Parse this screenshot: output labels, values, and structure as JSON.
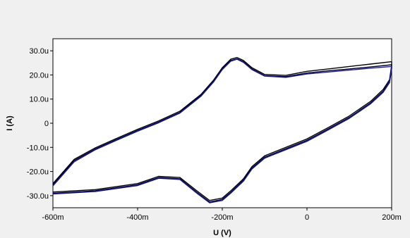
{
  "chart_data": {
    "type": "line",
    "title": "",
    "xlabel": "U (V)",
    "ylabel": "I (A)",
    "x_unit": "V",
    "y_unit": "A",
    "xlim": [
      -0.6,
      0.2
    ],
    "ylim": [
      -3.5e-05,
      3.5e-05
    ],
    "x_ticks": [
      {
        "value": -0.6,
        "label": "-600m"
      },
      {
        "value": -0.4,
        "label": "-400m"
      },
      {
        "value": -0.2,
        "label": "-200m"
      },
      {
        "value": 0.0,
        "label": "0"
      },
      {
        "value": 0.2,
        "label": "200m"
      }
    ],
    "y_ticks": [
      {
        "value": 3e-05,
        "label": "30.0u"
      },
      {
        "value": 2e-05,
        "label": "20.0u"
      },
      {
        "value": 1e-05,
        "label": "10.0u"
      },
      {
        "value": 0.0,
        "label": "0"
      },
      {
        "value": -1e-05,
        "label": "-10.0u"
      },
      {
        "value": -2e-05,
        "label": "-20.0u"
      },
      {
        "value": -3e-05,
        "label": "-30.0u"
      }
    ],
    "grid": false,
    "legend": "none",
    "colors": {
      "background": "#f0f0f0",
      "plot_background": "#ffffff",
      "series_dark": "#000000",
      "series_blue": "#1a1aa0"
    },
    "series": [
      {
        "color": "#000000",
        "x": [
          -0.6,
          -0.55,
          -0.5,
          -0.45,
          -0.4,
          -0.35,
          -0.3,
          -0.25,
          -0.22,
          -0.2,
          -0.18,
          -0.165,
          -0.15,
          -0.13,
          -0.1,
          -0.05,
          0.0,
          0.05,
          0.1,
          0.15,
          0.2,
          0.2,
          0.195,
          0.18,
          0.15,
          0.1,
          0.05,
          0.0,
          -0.05,
          -0.1,
          -0.13,
          -0.15,
          -0.18,
          -0.2,
          -0.23,
          -0.26,
          -0.3,
          -0.35,
          -0.4,
          -0.5,
          -0.6
        ],
        "y": [
          -2.5e-05,
          -1.5e-05,
          -1.02e-05,
          -6.3e-06,
          -2.5e-06,
          1e-06,
          5e-06,
          1.2e-05,
          1.8e-05,
          2.3e-05,
          2.65e-05,
          2.72e-05,
          2.6e-05,
          2.3e-05,
          2.02e-05,
          1.98e-05,
          2.15e-05,
          2.25e-05,
          2.35e-05,
          2.45e-05,
          2.55e-05,
          2.4e-05,
          1.8e-05,
          1.4e-05,
          9e-06,
          3e-06,
          -1.8e-06,
          -6.5e-06,
          -1e-05,
          -1.35e-05,
          -1.8e-05,
          -2.3e-05,
          -2.8e-05,
          -3.1e-05,
          -3.2e-05,
          -2.8e-05,
          -2.25e-05,
          -2.2e-05,
          -2.5e-05,
          -2.75e-05,
          -2.85e-05
        ]
      },
      {
        "color": "#000000",
        "x": [
          -0.6,
          -0.55,
          -0.5,
          -0.45,
          -0.4,
          -0.35,
          -0.3,
          -0.25,
          -0.22,
          -0.2,
          -0.18,
          -0.165,
          -0.15,
          -0.13,
          -0.1,
          -0.05,
          0.0,
          0.05,
          0.1,
          0.15,
          0.2,
          0.2,
          0.195,
          0.18,
          0.15,
          0.1,
          0.05,
          0.0,
          -0.05,
          -0.1,
          -0.13,
          -0.15,
          -0.18,
          -0.2,
          -0.23,
          -0.26,
          -0.3,
          -0.35,
          -0.4,
          -0.5,
          -0.6
        ],
        "y": [
          -2.55e-05,
          -1.55e-05,
          -1.07e-05,
          -6.8e-06,
          -3e-06,
          5e-07,
          4.5e-06,
          1.15e-05,
          1.75e-05,
          2.25e-05,
          2.6e-05,
          2.67e-05,
          2.55e-05,
          2.25e-05,
          1.97e-05,
          1.93e-05,
          2.08e-05,
          2.17e-05,
          2.25e-05,
          2.33e-05,
          2.42e-05,
          2.3e-05,
          1.72e-05,
          1.33e-05,
          8.4e-06,
          2.4e-06,
          -2.4e-06,
          -7.1e-06,
          -1.06e-05,
          -1.41e-05,
          -1.86e-05,
          -2.36e-05,
          -2.86e-05,
          -3.16e-05,
          -3.26e-05,
          -2.86e-05,
          -2.3e-05,
          -2.25e-05,
          -2.55e-05,
          -2.8e-05,
          -2.9e-05
        ]
      },
      {
        "color": "#1a1aa0",
        "x": [
          -0.6,
          -0.55,
          -0.5,
          -0.45,
          -0.4,
          -0.35,
          -0.3,
          -0.25,
          -0.22,
          -0.2,
          -0.18,
          -0.165,
          -0.15,
          -0.13,
          -0.1,
          -0.05,
          0.0,
          0.05,
          0.1,
          0.15,
          0.2,
          0.2,
          0.195,
          0.18,
          0.15,
          0.1,
          0.05,
          0.0,
          -0.05,
          -0.1,
          -0.13,
          -0.15,
          -0.18,
          -0.2,
          -0.23,
          -0.26,
          -0.3,
          -0.35,
          -0.4,
          -0.5,
          -0.6
        ],
        "y": [
          -2.6e-05,
          -1.6e-05,
          -1.1e-05,
          -7.1e-06,
          -3.3e-06,
          2e-07,
          4.2e-06,
          1.12e-05,
          1.72e-05,
          2.22e-05,
          2.57e-05,
          2.65e-05,
          2.52e-05,
          2.22e-05,
          1.95e-05,
          1.9e-05,
          2.04e-05,
          2.12e-05,
          2.2e-05,
          2.28e-05,
          2.35e-05,
          2.25e-05,
          1.68e-05,
          1.28e-05,
          8e-06,
          2e-06,
          -2.8e-06,
          -7.5e-06,
          -1.1e-05,
          -1.45e-05,
          -1.9e-05,
          -2.4e-05,
          -2.9e-05,
          -3.2e-05,
          -3.3e-05,
          -2.9e-05,
          -2.33e-05,
          -2.28e-05,
          -2.58e-05,
          -2.83e-05,
          -2.93e-05
        ]
      }
    ]
  }
}
